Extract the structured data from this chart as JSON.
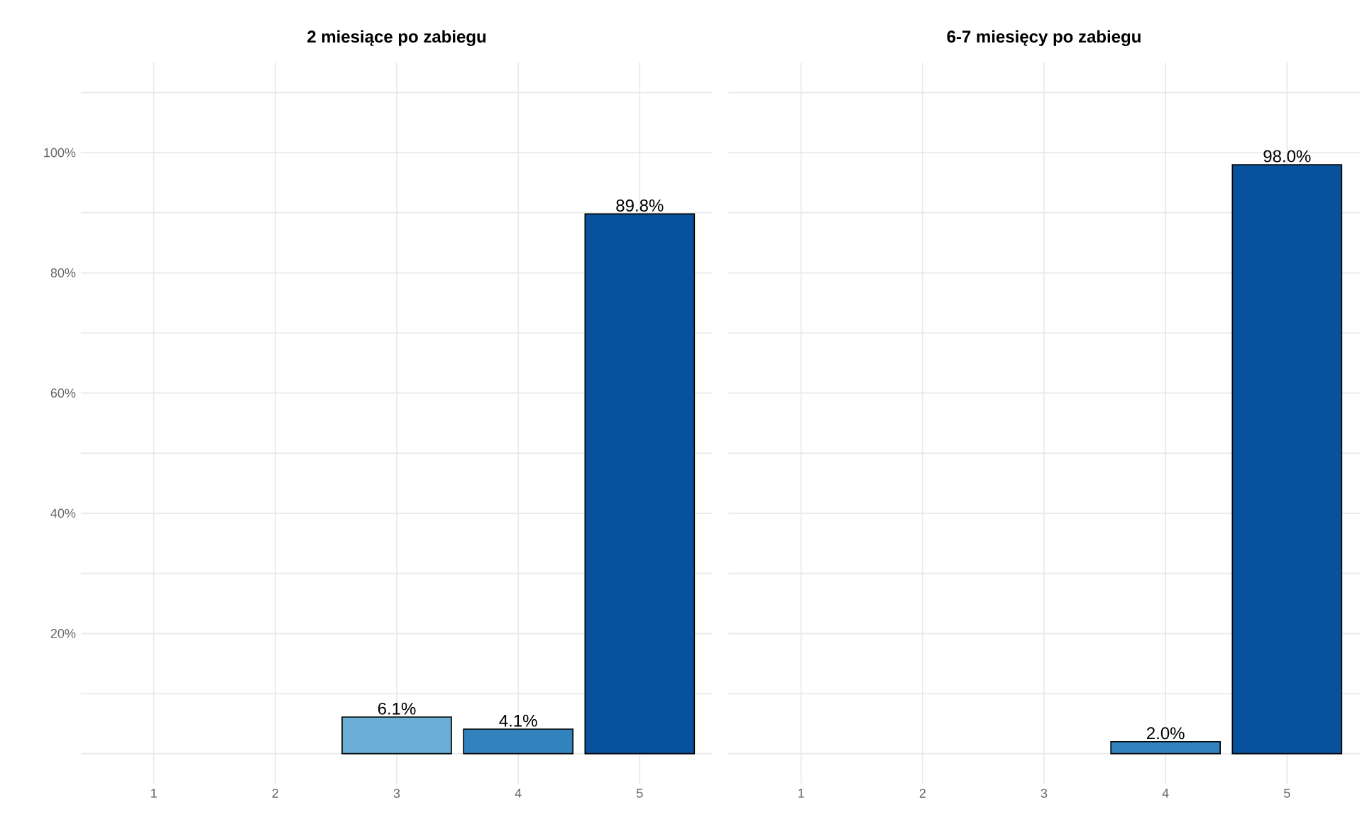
{
  "chart_data": [
    {
      "type": "bar",
      "title": "2 miesiące po zabiegu",
      "categories": [
        "1",
        "2",
        "3",
        "4",
        "5"
      ],
      "values": [
        null,
        null,
        6.1,
        4.1,
        89.8
      ],
      "colors": [
        "#6baed6",
        "#6baed6",
        "#6baed6",
        "#3182bd",
        "#08519c"
      ],
      "value_labels": [
        null,
        null,
        "6.1%",
        "4.1%",
        "89.8%"
      ],
      "ylim": [
        -5,
        115
      ],
      "yticks": [
        {
          "value": 0,
          "label": null
        },
        {
          "value": 10,
          "label": null
        },
        {
          "value": 20,
          "label": "20%"
        },
        {
          "value": 30,
          "label": null
        },
        {
          "value": 40,
          "label": "40%"
        },
        {
          "value": 50,
          "label": null
        },
        {
          "value": 60,
          "label": "60%"
        },
        {
          "value": 70,
          "label": null
        },
        {
          "value": 80,
          "label": "80%"
        },
        {
          "value": 90,
          "label": null
        },
        {
          "value": 100,
          "label": "100%"
        },
        {
          "value": 110,
          "label": null
        }
      ],
      "grid": true
    },
    {
      "type": "bar",
      "title": "6-7 miesięcy po zabiegu",
      "categories": [
        "1",
        "2",
        "3",
        "4",
        "5"
      ],
      "values": [
        null,
        null,
        null,
        2.0,
        98.0
      ],
      "colors": [
        "#6baed6",
        "#6baed6",
        "#6baed6",
        "#3182bd",
        "#08519c"
      ],
      "value_labels": [
        null,
        null,
        null,
        "2.0%",
        "98.0%"
      ],
      "ylim": [
        -5,
        115
      ],
      "yticks": [
        {
          "value": 0,
          "label": null
        },
        {
          "value": 10,
          "label": null
        },
        {
          "value": 20,
          "label": null
        },
        {
          "value": 30,
          "label": null
        },
        {
          "value": 40,
          "label": null
        },
        {
          "value": 50,
          "label": null
        },
        {
          "value": 60,
          "label": null
        },
        {
          "value": 70,
          "label": null
        },
        {
          "value": 80,
          "label": null
        },
        {
          "value": 90,
          "label": null
        },
        {
          "value": 100,
          "label": null
        },
        {
          "value": 110,
          "label": null
        }
      ],
      "tick_labels": "x",
      "grid": true
    }
  ]
}
